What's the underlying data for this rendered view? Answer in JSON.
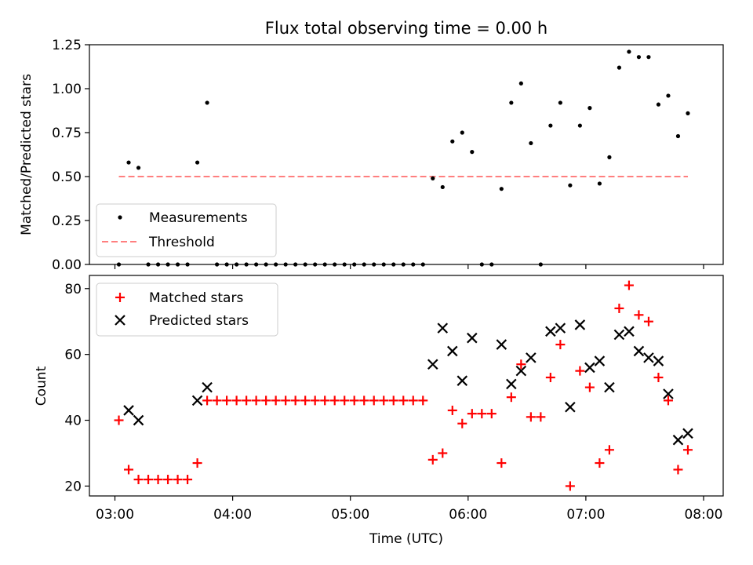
{
  "chart_data": [
    {
      "type": "scatter",
      "title": "Flux total observing time = 0.00 h",
      "ylabel": "Matched/Predicted stars",
      "xlabel": "",
      "xlim": [
        "02:47",
        "08:10"
      ],
      "ylim": [
        0,
        1.25
      ],
      "yticks": [
        "0.00",
        "0.25",
        "0.50",
        "0.75",
        "1.00",
        "1.25"
      ],
      "legend_location": "lower-left",
      "series": [
        {
          "name": "Measurements",
          "marker": "dot",
          "color": "#000000",
          "points": [
            [
              "03:02",
              0.0
            ],
            [
              "03:07",
              0.58
            ],
            [
              "03:12",
              0.55
            ],
            [
              "03:17",
              0.0
            ],
            [
              "03:22",
              0.0
            ],
            [
              "03:27",
              0.0
            ],
            [
              "03:32",
              0.0
            ],
            [
              "03:37",
              0.0
            ],
            [
              "03:42",
              0.58
            ],
            [
              "03:47",
              0.92
            ],
            [
              "03:52",
              0.0
            ],
            [
              "03:57",
              0.0
            ],
            [
              "04:02",
              0.0
            ],
            [
              "04:07",
              0.0
            ],
            [
              "04:12",
              0.0
            ],
            [
              "04:17",
              0.0
            ],
            [
              "04:22",
              0.0
            ],
            [
              "04:27",
              0.0
            ],
            [
              "04:32",
              0.0
            ],
            [
              "04:37",
              0.0
            ],
            [
              "04:42",
              0.0
            ],
            [
              "04:47",
              0.0
            ],
            [
              "04:52",
              0.0
            ],
            [
              "04:57",
              0.0
            ],
            [
              "05:02",
              0.0
            ],
            [
              "05:07",
              0.0
            ],
            [
              "05:12",
              0.0
            ],
            [
              "05:17",
              0.0
            ],
            [
              "05:22",
              0.0
            ],
            [
              "05:27",
              0.0
            ],
            [
              "05:32",
              0.0
            ],
            [
              "05:37",
              0.0
            ],
            [
              "05:42",
              0.49
            ],
            [
              "05:47",
              0.44
            ],
            [
              "05:52",
              0.7
            ],
            [
              "05:57",
              0.75
            ],
            [
              "06:02",
              0.64
            ],
            [
              "06:07",
              0.0
            ],
            [
              "06:12",
              0.0
            ],
            [
              "06:17",
              0.43
            ],
            [
              "06:22",
              0.92
            ],
            [
              "06:27",
              1.03
            ],
            [
              "06:32",
              0.69
            ],
            [
              "06:37",
              0.0
            ],
            [
              "06:42",
              0.79
            ],
            [
              "06:47",
              0.92
            ],
            [
              "06:52",
              0.45
            ],
            [
              "06:57",
              0.79
            ],
            [
              "07:02",
              0.89
            ],
            [
              "07:07",
              0.46
            ],
            [
              "07:12",
              0.61
            ],
            [
              "07:17",
              1.12
            ],
            [
              "07:22",
              1.21
            ],
            [
              "07:27",
              1.18
            ],
            [
              "07:32",
              1.18
            ],
            [
              "07:37",
              0.91
            ],
            [
              "07:42",
              0.96
            ],
            [
              "07:47",
              0.73
            ],
            [
              "07:52",
              0.86
            ]
          ]
        },
        {
          "name": "Threshold",
          "marker": "dashed-line",
          "color": "#ff7f7f",
          "points": [
            [
              "03:02",
              0.5
            ],
            [
              "07:52",
              0.5
            ]
          ]
        }
      ]
    },
    {
      "type": "scatter",
      "title": "",
      "ylabel": "Count",
      "xlabel": "Time (UTC)",
      "xlim": [
        "02:47",
        "08:10"
      ],
      "ylim": [
        17,
        84
      ],
      "yticks": [
        "20",
        "40",
        "60",
        "80"
      ],
      "xticks": [
        "03:00",
        "04:00",
        "05:00",
        "06:00",
        "07:00",
        "08:00"
      ],
      "legend_location": "top-left",
      "series": [
        {
          "name": "Matched stars",
          "marker": "plus",
          "color": "#ff0000",
          "points": [
            [
              "03:02",
              40
            ],
            [
              "03:07",
              25
            ],
            [
              "03:12",
              22
            ],
            [
              "03:17",
              22
            ],
            [
              "03:22",
              22
            ],
            [
              "03:27",
              22
            ],
            [
              "03:32",
              22
            ],
            [
              "03:37",
              22
            ],
            [
              "03:42",
              27
            ],
            [
              "03:47",
              46
            ],
            [
              "03:52",
              46
            ],
            [
              "03:57",
              46
            ],
            [
              "04:02",
              46
            ],
            [
              "04:07",
              46
            ],
            [
              "04:12",
              46
            ],
            [
              "04:17",
              46
            ],
            [
              "04:22",
              46
            ],
            [
              "04:27",
              46
            ],
            [
              "04:32",
              46
            ],
            [
              "04:37",
              46
            ],
            [
              "04:42",
              46
            ],
            [
              "04:47",
              46
            ],
            [
              "04:52",
              46
            ],
            [
              "04:57",
              46
            ],
            [
              "05:02",
              46
            ],
            [
              "05:07",
              46
            ],
            [
              "05:12",
              46
            ],
            [
              "05:17",
              46
            ],
            [
              "05:22",
              46
            ],
            [
              "05:27",
              46
            ],
            [
              "05:32",
              46
            ],
            [
              "05:37",
              46
            ],
            [
              "05:42",
              28
            ],
            [
              "05:47",
              30
            ],
            [
              "05:52",
              43
            ],
            [
              "05:57",
              39
            ],
            [
              "06:02",
              42
            ],
            [
              "06:07",
              42
            ],
            [
              "06:12",
              42
            ],
            [
              "06:17",
              27
            ],
            [
              "06:22",
              47
            ],
            [
              "06:27",
              57
            ],
            [
              "06:32",
              41
            ],
            [
              "06:37",
              41
            ],
            [
              "06:42",
              53
            ],
            [
              "06:47",
              63
            ],
            [
              "06:52",
              20
            ],
            [
              "06:57",
              55
            ],
            [
              "07:02",
              50
            ],
            [
              "07:07",
              27
            ],
            [
              "07:12",
              31
            ],
            [
              "07:17",
              74
            ],
            [
              "07:22",
              81
            ],
            [
              "07:27",
              72
            ],
            [
              "07:32",
              70
            ],
            [
              "07:37",
              53
            ],
            [
              "07:42",
              46
            ],
            [
              "07:47",
              25
            ],
            [
              "07:52",
              31
            ]
          ]
        },
        {
          "name": "Predicted stars",
          "marker": "x",
          "color": "#000000",
          "points": [
            [
              "03:07",
              43
            ],
            [
              "03:12",
              40
            ],
            [
              "03:42",
              46
            ],
            [
              "03:47",
              50
            ],
            [
              "05:42",
              57
            ],
            [
              "05:47",
              68
            ],
            [
              "05:52",
              61
            ],
            [
              "05:57",
              52
            ],
            [
              "06:02",
              65
            ],
            [
              "06:17",
              63
            ],
            [
              "06:22",
              51
            ],
            [
              "06:27",
              55
            ],
            [
              "06:32",
              59
            ],
            [
              "06:42",
              67
            ],
            [
              "06:47",
              68
            ],
            [
              "06:52",
              44
            ],
            [
              "06:57",
              69
            ],
            [
              "07:02",
              56
            ],
            [
              "07:07",
              58
            ],
            [
              "07:12",
              50
            ],
            [
              "07:17",
              66
            ],
            [
              "07:22",
              67
            ],
            [
              "07:27",
              61
            ],
            [
              "07:32",
              59
            ],
            [
              "07:37",
              58
            ],
            [
              "07:42",
              48
            ],
            [
              "07:47",
              34
            ],
            [
              "07:52",
              36
            ]
          ]
        }
      ]
    }
  ]
}
